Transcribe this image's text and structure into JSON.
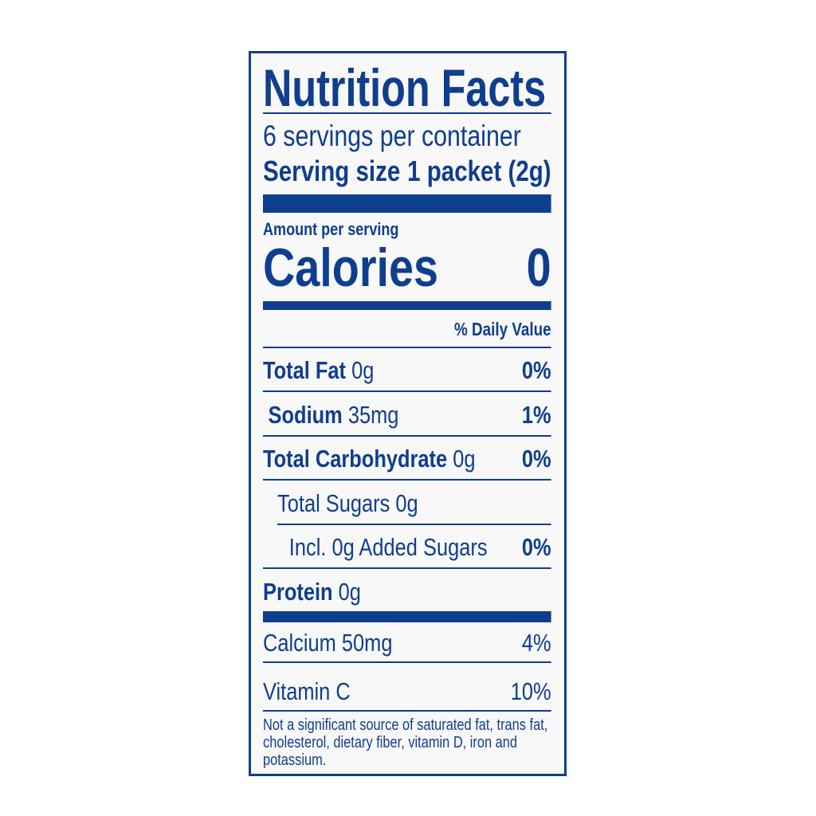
{
  "label": {
    "title": "Nutrition Facts",
    "servings_per_container": "6 servings per container",
    "serving_size_label": "Serving size",
    "serving_size_value": "1 packet (2g)",
    "amount_per_serving": "Amount per serving",
    "calories_label": "Calories",
    "calories_value": "0",
    "daily_value_header": "% Daily Value",
    "nutrients": [
      {
        "name": "Total Fat",
        "amount": "0g",
        "dv": "0%"
      },
      {
        "name": "Sodium",
        "amount": "35mg",
        "dv": "1%"
      },
      {
        "name": "Total Carbohydrate",
        "amount": "0g",
        "dv": "0%"
      },
      {
        "name": "Total Sugars 0g",
        "amount": "",
        "dv": ""
      },
      {
        "name": "Incl. 0g Added Sugars",
        "amount": "",
        "dv": "0%"
      },
      {
        "name": "Protein",
        "amount": "0g",
        "dv": ""
      }
    ],
    "vitamins": [
      {
        "name": "Calcium 50mg",
        "dv": "4%"
      },
      {
        "name": "Vitamin C",
        "dv": "10%"
      }
    ],
    "footnote": "Not a significant source of saturated fat, trans fat, cholesterol, dietary fiber, vitamin D, iron and potassium."
  },
  "colors": {
    "ink": "#0f3e8e",
    "background": "#f8f8f8"
  }
}
